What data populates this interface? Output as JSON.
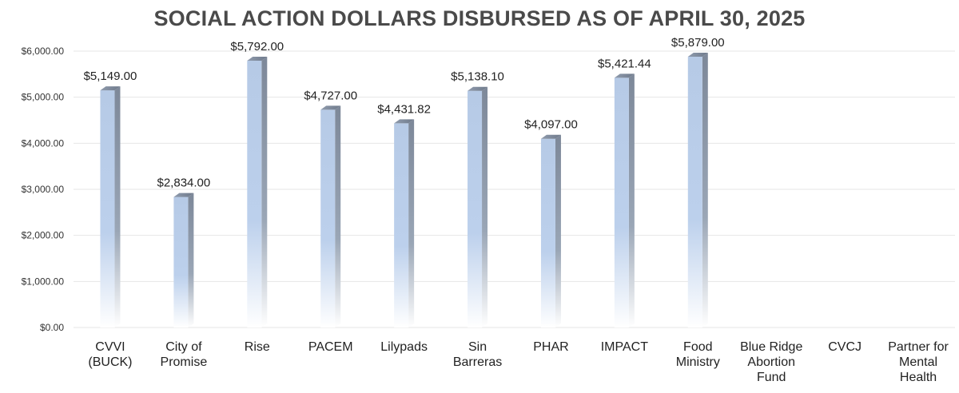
{
  "chart_data": {
    "type": "bar",
    "title": "SOCIAL ACTION DOLLARS DISBURSED AS OF APRIL 30, 2025",
    "xlabel": "",
    "ylabel": "",
    "ylim": [
      0,
      6000
    ],
    "y_ticks": [
      "$0.00",
      "$1,000.00",
      "$2,000.00",
      "$3,000.00",
      "$4,000.00",
      "$5,000.00",
      "$6,000.00"
    ],
    "y_tick_values": [
      0,
      1000,
      2000,
      3000,
      4000,
      5000,
      6000
    ],
    "grid": true,
    "legend": "none",
    "bar_color": "#b8cce8",
    "bar_side_color": "#7a8799",
    "categories": [
      [
        "CVVI",
        "(BUCK)"
      ],
      [
        "City of",
        "Promise"
      ],
      [
        "Rise"
      ],
      [
        "PACEM"
      ],
      [
        "Lilypads"
      ],
      [
        "Sin",
        "Barreras"
      ],
      [
        "PHAR"
      ],
      [
        "IMPACT"
      ],
      [
        "Food",
        "Ministry"
      ],
      [
        "Blue Ridge",
        "Abortion",
        "Fund"
      ],
      [
        "CVCJ"
      ],
      [
        "Partner for",
        "Mental",
        "Health"
      ]
    ],
    "values": [
      5149.0,
      2834.0,
      5792.0,
      4727.0,
      4431.82,
      5138.1,
      4097.0,
      5421.44,
      5879.0,
      null,
      null,
      null
    ],
    "data_labels": [
      "$5,149.00",
      "$2,834.00",
      "$5,792.00",
      "$4,727.00",
      "$4,431.82",
      "$5,138.10",
      "$4,097.00",
      "$5,421.44",
      "$5,879.00",
      "",
      "",
      ""
    ]
  }
}
